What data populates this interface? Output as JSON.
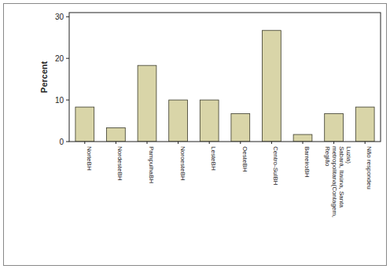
{
  "chart_data": {
    "type": "bar",
    "y_label": "Percent",
    "categories": [
      "NorteBH",
      "NordesteBH",
      "PampulhaBH",
      "NoroesteBH",
      "LesteBH",
      "OesteBH",
      "Centro-SulBH",
      "BarreiroBH",
      "Região metropolitana(Contagem, Sabará, Itaúna, Santa Luzia)",
      "Não respondeu"
    ],
    "values": [
      8.3,
      3.3,
      18.3,
      10,
      10,
      6.7,
      26.7,
      1.7,
      6.7,
      8.3
    ],
    "color": "#d9d5a8",
    "ylim": [
      0,
      31
    ],
    "yticks": [
      0,
      10,
      20,
      30
    ],
    "grid": false
  }
}
